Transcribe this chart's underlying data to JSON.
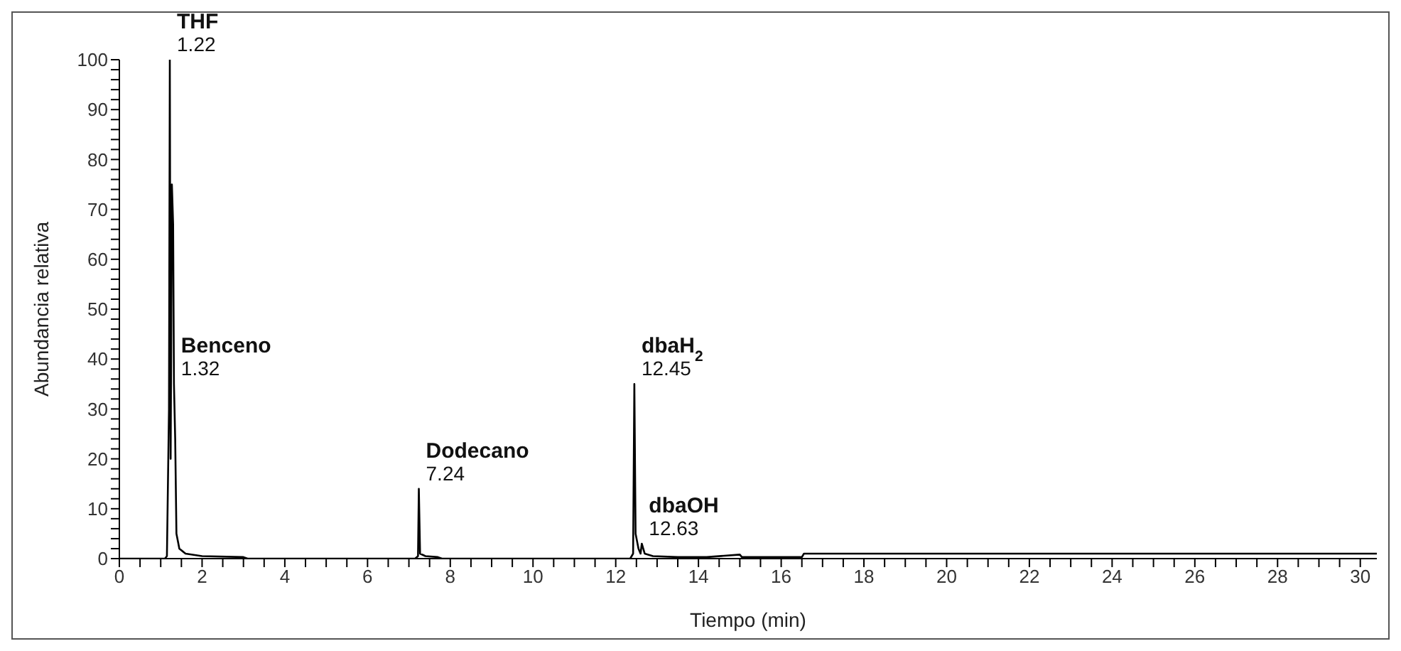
{
  "chart_data": {
    "type": "line",
    "xlabel": "Tiempo (min)",
    "ylabel": "Abundancia relativa",
    "x": [
      0,
      1.1,
      1.15,
      1.2,
      1.22,
      1.24,
      1.27,
      1.3,
      1.32,
      1.35,
      1.38,
      1.45,
      1.6,
      2,
      3,
      3.1,
      7.15,
      7.22,
      7.24,
      7.27,
      7.4,
      7.7,
      7.8,
      12.35,
      12.42,
      12.45,
      12.48,
      12.55,
      12.6,
      12.63,
      12.7,
      12.9,
      13.5,
      14.2,
      15,
      15.05,
      16.5,
      16.55,
      30.4
    ],
    "series": [
      {
        "color": "#000000",
        "values": [
          0,
          0,
          0.5,
          30,
          100,
          20,
          75,
          67,
          35,
          24,
          5,
          2,
          1,
          0.5,
          0.3,
          0,
          0,
          0.5,
          14,
          1,
          0.5,
          0.3,
          0,
          0,
          1,
          35,
          5,
          2,
          1,
          3,
          1,
          0.5,
          0.3,
          0.3,
          0.8,
          0.3,
          0.3,
          1,
          1
        ]
      }
    ],
    "xlim": [
      0,
      30.4
    ],
    "xticks": [
      0,
      {
        "value": 0.5,
        "label": null
      },
      {
        "value": 1,
        "label": null
      },
      {
        "value": 1.5,
        "label": null
      },
      2,
      {
        "value": 2.5,
        "label": null
      },
      {
        "value": 3,
        "label": null
      },
      {
        "value": 3.5,
        "label": null
      },
      4,
      {
        "value": 4.5,
        "label": null
      },
      {
        "value": 5,
        "label": null
      },
      {
        "value": 5.5,
        "label": null
      },
      6,
      {
        "value": 6.5,
        "label": null
      },
      {
        "value": 7,
        "label": null
      },
      {
        "value": 7.5,
        "label": null
      },
      8,
      {
        "value": 8.5,
        "label": null
      },
      {
        "value": 9,
        "label": null
      },
      {
        "value": 9.5,
        "label": null
      },
      10,
      {
        "value": 10.5,
        "label": null
      },
      {
        "value": 11,
        "label": null
      },
      {
        "value": 11.5,
        "label": null
      },
      12,
      {
        "value": 12.5,
        "label": null
      },
      {
        "value": 13,
        "label": null
      },
      {
        "value": 13.5,
        "label": null
      },
      14,
      {
        "value": 14.5,
        "label": null
      },
      {
        "value": 15,
        "label": null
      },
      {
        "value": 15.5,
        "label": null
      },
      16,
      {
        "value": 16.5,
        "label": null
      },
      {
        "value": 17,
        "label": null
      },
      {
        "value": 17.5,
        "label": null
      },
      18,
      {
        "value": 18.5,
        "label": null
      },
      {
        "value": 19,
        "label": null
      },
      {
        "value": 19.5,
        "label": null
      },
      20,
      {
        "value": 20.5,
        "label": null
      },
      {
        "value": 21,
        "label": null
      },
      {
        "value": 21.5,
        "label": null
      },
      22,
      {
        "value": 22.5,
        "label": null
      },
      {
        "value": 23,
        "label": null
      },
      {
        "value": 23.5,
        "label": null
      },
      24,
      {
        "value": 24.5,
        "label": null
      },
      {
        "value": 25,
        "label": null
      },
      {
        "value": 25.5,
        "label": null
      },
      26,
      {
        "value": 26.5,
        "label": null
      },
      {
        "value": 27,
        "label": null
      },
      {
        "value": 27.5,
        "label": null
      },
      28,
      {
        "value": 28.5,
        "label": null
      },
      {
        "value": 29,
        "label": null
      },
      {
        "value": 29.5,
        "label": null
      },
      30
    ],
    "ylim": [
      0,
      100
    ],
    "yticks": [
      0,
      {
        "value": 2,
        "label": null
      },
      {
        "value": 4,
        "label": null
      },
      {
        "value": 6,
        "label": null
      },
      {
        "value": 8,
        "label": null
      },
      10,
      {
        "value": 12,
        "label": null
      },
      {
        "value": 14,
        "label": null
      },
      {
        "value": 16,
        "label": null
      },
      {
        "value": 18,
        "label": null
      },
      20,
      {
        "value": 22,
        "label": null
      },
      {
        "value": 24,
        "label": null
      },
      {
        "value": 26,
        "label": null
      },
      {
        "value": 28,
        "label": null
      },
      30,
      {
        "value": 32,
        "label": null
      },
      {
        "value": 34,
        "label": null
      },
      {
        "value": 36,
        "label": null
      },
      {
        "value": 38,
        "label": null
      },
      40,
      {
        "value": 42,
        "label": null
      },
      {
        "value": 44,
        "label": null
      },
      {
        "value": 46,
        "label": null
      },
      {
        "value": 48,
        "label": null
      },
      50,
      {
        "value": 52,
        "label": null
      },
      {
        "value": 54,
        "label": null
      },
      {
        "value": 56,
        "label": null
      },
      {
        "value": 58,
        "label": null
      },
      60,
      {
        "value": 62,
        "label": null
      },
      {
        "value": 64,
        "label": null
      },
      {
        "value": 66,
        "label": null
      },
      {
        "value": 68,
        "label": null
      },
      70,
      {
        "value": 72,
        "label": null
      },
      {
        "value": 74,
        "label": null
      },
      {
        "value": 76,
        "label": null
      },
      {
        "value": 78,
        "label": null
      },
      80,
      {
        "value": 82,
        "label": null
      },
      {
        "value": 84,
        "label": null
      },
      {
        "value": 86,
        "label": null
      },
      {
        "value": 88,
        "label": null
      },
      90,
      {
        "value": 92,
        "label": null
      },
      {
        "value": 94,
        "label": null
      },
      {
        "value": 96,
        "label": null
      },
      {
        "value": 98,
        "label": null
      },
      100
    ],
    "annotations": [
      {
        "text": "THF",
        "x": 1.22,
        "y": 100
      },
      {
        "text": "1.22",
        "x": 1.22,
        "y": 100
      },
      {
        "text": "Benceno",
        "x": 1.32,
        "y": 35
      },
      {
        "text": "1.32",
        "x": 1.32,
        "y": 35
      },
      {
        "text": "Dodecano",
        "x": 7.24,
        "y": 14
      },
      {
        "text": "7.24",
        "x": 7.24,
        "y": 14
      },
      {
        "text": "dbaH$_{2}$",
        "x": 12.45,
        "y": 35
      },
      {
        "text": "12.45",
        "x": 12.45,
        "y": 35
      },
      {
        "text": "dbaOH",
        "x": 12.63,
        "y": 3
      },
      {
        "text": "12.63",
        "x": 12.63,
        "y": 3
      }
    ],
    "grid": false,
    "legend": false,
    "marker": "none",
    "line_style": "solid"
  }
}
